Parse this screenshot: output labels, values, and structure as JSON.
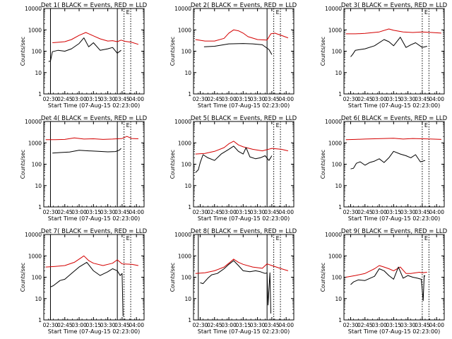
{
  "figure": {
    "x_label": "Start Time (07-Aug-15 02:23:00)",
    "y_label": "Counts/sec",
    "x_tick_labels": [
      "02:30",
      "02:45",
      "03:00",
      "03:15",
      "03:30",
      "03:45",
      "04:00"
    ],
    "y_tick_labels": [
      "1",
      "10",
      "100",
      "1000",
      "10000"
    ],
    "marker_glyph": "E",
    "colors": {
      "events": "#000000",
      "lld": "#d40000",
      "axes": "#000000",
      "background": "#ffffff"
    }
  },
  "chart_data": [
    {
      "type": "line",
      "title": "Det 1( BLACK = Events, RED = LLD",
      "y_scale": "log",
      "xlim": [
        "02:23",
        "04:08"
      ],
      "ylim": [
        1,
        10000
      ],
      "solid_markers": [
        "02:30",
        "03:40"
      ],
      "dotted_markers": [
        "03:47",
        "03:54"
      ],
      "series": [
        {
          "x": [
            "02:32",
            "02:38",
            "02:45",
            "02:52",
            "03:00",
            "03:07",
            "03:15",
            "03:22",
            "03:30",
            "03:35",
            "03:40",
            "03:44",
            "03:48",
            "03:55",
            "04:02"
          ],
          "values": [
            250,
            260,
            280,
            350,
            550,
            750,
            520,
            380,
            300,
            310,
            280,
            330,
            290,
            260,
            210
          ]
        },
        {
          "x": [
            "02:28",
            "02:30",
            "02:32",
            "02:38",
            "02:45",
            "02:52",
            "03:00",
            "03:05",
            "03:10",
            "03:15",
            "03:22",
            "03:30",
            "03:35",
            "03:40",
            "03:44"
          ],
          "values": [
            33,
            35,
            95,
            110,
            100,
            130,
            230,
            420,
            160,
            250,
            110,
            130,
            150,
            80,
            110
          ]
        }
      ]
    },
    {
      "type": "line",
      "title": "Det 2( BLACK = Events, RED = LLD",
      "y_scale": "log",
      "xlim": [
        "02:23",
        "04:08"
      ],
      "ylim": [
        1,
        10000
      ],
      "solid_markers": [
        "03:40"
      ],
      "dotted_markers": [
        "03:47",
        "03:54"
      ],
      "series": [
        {
          "x": [
            "02:25",
            "02:35",
            "02:45",
            "02:55",
            "03:00",
            "03:05",
            "03:10",
            "03:15",
            "03:20",
            "03:30",
            "03:40",
            "03:44",
            "03:48",
            "03:55",
            "04:02"
          ],
          "values": [
            350,
            300,
            300,
            400,
            700,
            1000,
            900,
            700,
            480,
            350,
            330,
            650,
            700,
            550,
            420
          ]
        },
        {
          "x": [
            "02:34",
            "02:45",
            "03:00",
            "03:15",
            "03:25",
            "03:35",
            "03:42",
            "03:45"
          ],
          "values": [
            160,
            170,
            220,
            230,
            220,
            200,
            120,
            70
          ]
        }
      ]
    },
    {
      "type": "line",
      "title": "Det 3( BLACK = Events, RED = LLD",
      "y_scale": "log",
      "xlim": [
        "02:23",
        "04:08"
      ],
      "ylim": [
        1,
        10000
      ],
      "solid_markers": [],
      "dotted_markers": [
        "03:45",
        "03:52"
      ],
      "series": [
        {
          "x": [
            "02:25",
            "02:35",
            "02:45",
            "03:00",
            "03:10",
            "03:15",
            "03:25",
            "03:35",
            "03:45",
            "03:55",
            "04:05"
          ],
          "values": [
            650,
            650,
            680,
            800,
            1100,
            950,
            800,
            750,
            800,
            750,
            700
          ]
        },
        {
          "x": [
            "02:30",
            "02:32",
            "02:35",
            "02:40",
            "02:45",
            "02:55",
            "03:05",
            "03:10",
            "03:15",
            "03:22",
            "03:28",
            "03:33",
            "03:38",
            "03:45",
            "03:50"
          ],
          "values": [
            55,
            70,
            110,
            120,
            130,
            180,
            350,
            280,
            180,
            450,
            150,
            200,
            250,
            150,
            170
          ]
        }
      ]
    },
    {
      "type": "line",
      "title": "Det 4( BLACK = Events, RED = LLD",
      "y_scale": "log",
      "xlim": [
        "02:23",
        "04:08"
      ],
      "ylim": [
        1,
        10000
      ],
      "solid_markers": [
        "02:30",
        "03:40"
      ],
      "dotted_markers": [
        "03:47",
        "03:54"
      ],
      "series": [
        {
          "x": [
            "02:25",
            "02:35",
            "02:45",
            "02:55",
            "03:05",
            "03:15",
            "03:25",
            "03:35",
            "03:45",
            "03:50",
            "03:55",
            "04:02"
          ],
          "values": [
            1400,
            1400,
            1450,
            1700,
            1500,
            1550,
            1450,
            1500,
            1600,
            2000,
            1600,
            1550
          ]
        },
        {
          "x": [
            "02:32",
            "02:40",
            "02:50",
            "03:00",
            "03:10",
            "03:20",
            "03:30",
            "03:38",
            "03:42",
            "03:44"
          ],
          "values": [
            330,
            350,
            370,
            450,
            420,
            400,
            380,
            390,
            450,
            550
          ]
        }
      ]
    },
    {
      "type": "line",
      "title": "Det 5( BLACK = Events, RED = LLD",
      "y_scale": "log",
      "xlim": [
        "02:23",
        "04:08"
      ],
      "ylim": [
        1,
        10000
      ],
      "solid_markers": [
        "03:40"
      ],
      "dotted_markers": [
        "03:47",
        "03:54"
      ],
      "series": [
        {
          "x": [
            "02:25",
            "02:35",
            "02:45",
            "02:55",
            "03:00",
            "03:05",
            "03:10",
            "03:15",
            "03:25",
            "03:35",
            "03:45",
            "03:55",
            "04:02"
          ],
          "values": [
            300,
            320,
            400,
            600,
            900,
            1200,
            800,
            650,
            500,
            420,
            550,
            500,
            420
          ]
        },
        {
          "x": [
            "02:25",
            "02:28",
            "02:30",
            "02:33",
            "02:38",
            "02:45",
            "02:52",
            "03:00",
            "03:05",
            "03:10",
            "03:15",
            "03:18",
            "03:22",
            "03:28",
            "03:33",
            "03:38",
            "03:42",
            "03:45"
          ],
          "values": [
            40,
            55,
            120,
            280,
            200,
            150,
            300,
            500,
            700,
            400,
            300,
            600,
            220,
            180,
            200,
            250,
            150,
            250
          ]
        }
      ]
    },
    {
      "type": "line",
      "title": "Det 6( BLACK = Events, RED = LLD",
      "y_scale": "log",
      "xlim": [
        "02:23",
        "04:08"
      ],
      "ylim": [
        1,
        10000
      ],
      "solid_markers": [],
      "dotted_markers": [
        "03:45",
        "03:52"
      ],
      "series": [
        {
          "x": [
            "02:25",
            "02:35",
            "02:45",
            "02:55",
            "03:05",
            "03:15",
            "03:25",
            "03:35",
            "03:45",
            "03:55",
            "04:05"
          ],
          "values": [
            1400,
            1450,
            1500,
            1550,
            1600,
            1650,
            1500,
            1600,
            1550,
            1500,
            1450
          ]
        },
        {
          "x": [
            "02:30",
            "02:33",
            "02:36",
            "02:40",
            "02:45",
            "02:50",
            "02:55",
            "03:00",
            "03:05",
            "03:10",
            "03:15",
            "03:22",
            "03:28",
            "03:33",
            "03:38",
            "03:43",
            "03:48"
          ],
          "values": [
            60,
            65,
            110,
            130,
            90,
            120,
            140,
            180,
            120,
            200,
            400,
            300,
            250,
            200,
            280,
            130,
            150
          ]
        }
      ]
    },
    {
      "type": "line",
      "title": "Det 7( BLACK = Events, RED = LLD",
      "y_scale": "log",
      "xlim": [
        "02:23",
        "04:08"
      ],
      "ylim": [
        1,
        10000
      ],
      "solid_markers": [
        "02:30",
        "03:40"
      ],
      "dotted_markers": [
        "03:47",
        "03:54"
      ],
      "series": [
        {
          "x": [
            "02:25",
            "02:35",
            "02:45",
            "02:55",
            "03:00",
            "03:05",
            "03:10",
            "03:15",
            "03:25",
            "03:35",
            "03:40",
            "03:45",
            "03:55",
            "04:02"
          ],
          "values": [
            300,
            320,
            350,
            500,
            700,
            1000,
            600,
            450,
            350,
            450,
            650,
            420,
            400,
            350
          ]
        },
        {
          "x": [
            "02:30",
            "02:33",
            "02:40",
            "02:45",
            "02:52",
            "03:00",
            "03:08",
            "03:15",
            "03:22",
            "03:30",
            "03:35",
            "03:40",
            "03:43",
            "03:45",
            "03:46"
          ],
          "values": [
            35,
            40,
            70,
            80,
            150,
            300,
            500,
            200,
            120,
            180,
            250,
            200,
            120,
            150,
            1.5
          ]
        }
      ]
    },
    {
      "type": "line",
      "title": "Det 8( BLACK = Events, RED = LLD",
      "y_scale": "log",
      "xlim": [
        "02:23",
        "04:08"
      ],
      "ylim": [
        1,
        10000
      ],
      "solid_markers": [
        "02:28",
        "03:40"
      ],
      "dotted_markers": [
        "03:47",
        "03:54"
      ],
      "series": [
        {
          "x": [
            "02:25",
            "02:35",
            "02:45",
            "02:55",
            "03:00",
            "03:05",
            "03:10",
            "03:15",
            "03:25",
            "03:35",
            "03:40",
            "03:45",
            "03:55",
            "04:02"
          ],
          "values": [
            150,
            160,
            200,
            300,
            450,
            700,
            500,
            400,
            300,
            260,
            420,
            350,
            250,
            200
          ]
        },
        {
          "x": [
            "02:30",
            "02:33",
            "02:38",
            "02:42",
            "02:48",
            "02:55",
            "03:00",
            "03:05",
            "03:10",
            "03:15",
            "03:22",
            "03:28",
            "03:33",
            "03:38",
            "03:40",
            "03:41",
            "03:43",
            "03:44"
          ],
          "values": [
            55,
            50,
            90,
            130,
            150,
            250,
            400,
            600,
            350,
            200,
            180,
            200,
            180,
            150,
            160,
            5,
            160,
            2
          ]
        }
      ]
    },
    {
      "type": "line",
      "title": "Det 9( BLACK = Events, RED = LLD",
      "y_scale": "log",
      "xlim": [
        "02:23",
        "04:08"
      ],
      "ylim": [
        1,
        10000
      ],
      "solid_markers": [],
      "dotted_markers": [
        "03:45",
        "03:52"
      ],
      "series": [
        {
          "x": [
            "02:25",
            "02:35",
            "02:45",
            "02:55",
            "03:00",
            "03:05",
            "03:10",
            "03:15",
            "03:22",
            "03:28",
            "03:33",
            "03:38",
            "03:42",
            "03:45",
            "03:50"
          ],
          "values": [
            100,
            120,
            150,
            250,
            350,
            300,
            250,
            200,
            300,
            150,
            150,
            160,
            170,
            160,
            170
          ]
        },
        {
          "x": [
            "02:30",
            "02:33",
            "02:38",
            "02:45",
            "02:55",
            "03:00",
            "03:05",
            "03:10",
            "03:15",
            "03:20",
            "03:25",
            "03:30",
            "03:35",
            "03:40",
            "03:44",
            "03:46",
            "03:47",
            "03:48"
          ],
          "values": [
            45,
            60,
            75,
            70,
            110,
            250,
            200,
            120,
            80,
            300,
            90,
            120,
            100,
            90,
            80,
            8,
            120,
            110
          ]
        }
      ]
    }
  ]
}
